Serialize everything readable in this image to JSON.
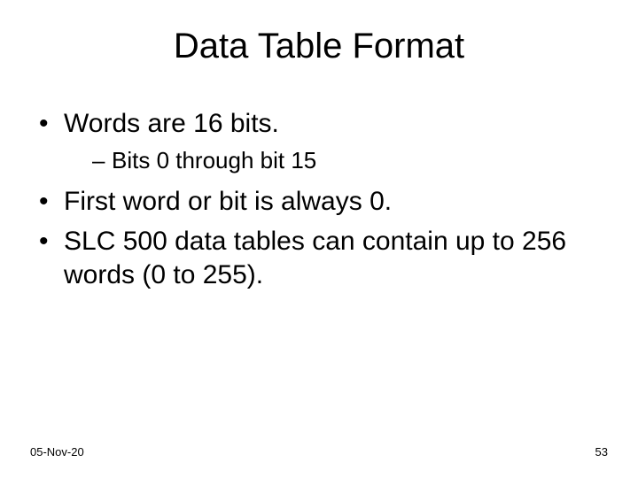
{
  "title": "Data Table Format",
  "bullets": {
    "b1": "Words are 16 bits.",
    "b1_sub1": "Bits 0 through bit 15",
    "b2": "First word or bit is always 0.",
    "b3": "SLC 500 data tables can contain up to 256 words (0 to 255)."
  },
  "footer": {
    "date": "05-Nov-20",
    "page": "53"
  },
  "style": {
    "background_color": "#ffffff",
    "text_color": "#000000",
    "font_family": "Arial",
    "title_fontsize": 40,
    "level1_fontsize": 30,
    "level2_fontsize": 26,
    "footer_fontsize": 13
  }
}
